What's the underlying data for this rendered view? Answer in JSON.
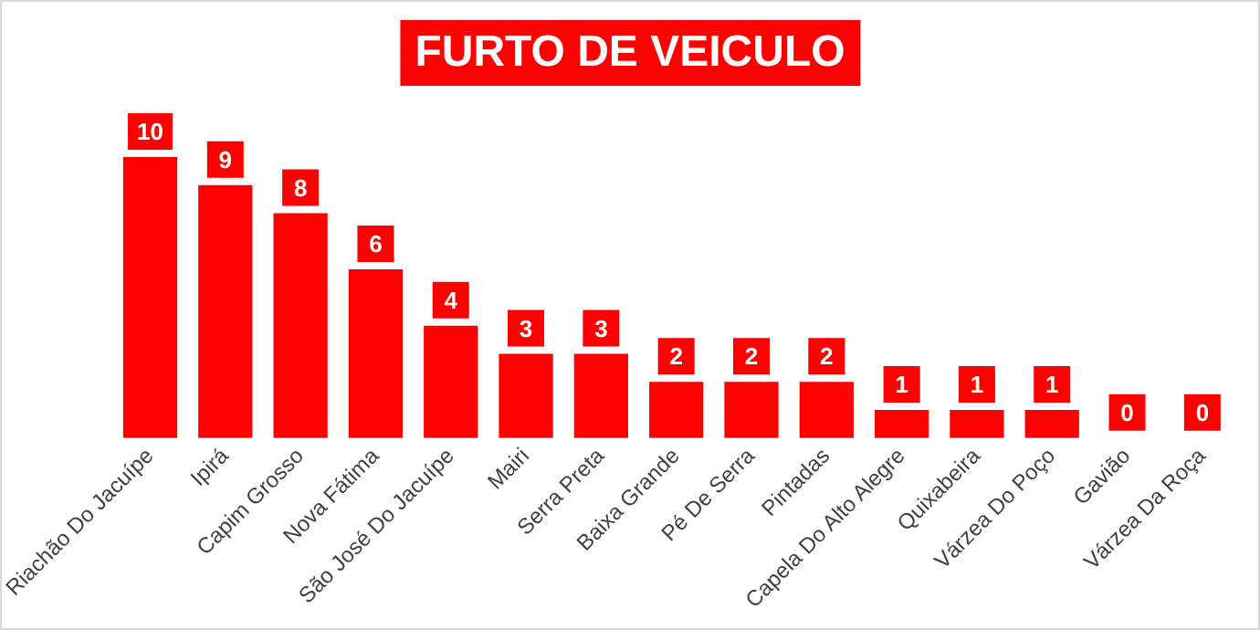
{
  "chart_data": {
    "type": "bar",
    "title": "FURTO DE VEICULO",
    "categories": [
      "Riachão Do Jacuípe",
      "Ipirá",
      "Capim Grosso",
      "Nova Fátima",
      "São José Do Jacuípe",
      "Mairi",
      "Serra Preta",
      "Baixa Grande",
      "Pé De Serra",
      "Pintadas",
      "Capela Do Alto Alegre",
      "Quixabeira",
      "Várzea Do Poço",
      "Gavião",
      "Várzea Da Roça"
    ],
    "values": [
      10,
      9,
      8,
      6,
      4,
      3,
      3,
      2,
      2,
      2,
      1,
      1,
      1,
      0,
      0
    ],
    "color": "#ff0000",
    "data_labels": true,
    "grid": false,
    "legend": false
  }
}
